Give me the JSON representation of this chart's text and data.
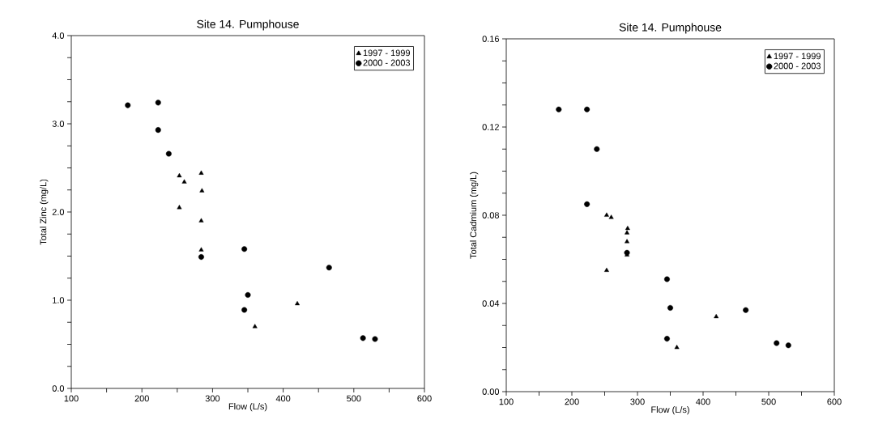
{
  "chart_data": [
    {
      "type": "scatter",
      "title": "Site 14. Pumphouse",
      "xlabel": "Flow (L/s)",
      "ylabel": "Total Zinc (mg/L)",
      "xlim": [
        100,
        600
      ],
      "ylim": [
        0,
        4
      ],
      "xticks": [
        100,
        {
          "value": 150,
          "label": null
        },
        200,
        {
          "value": 250,
          "label": null
        },
        300,
        {
          "value": 350,
          "label": null
        },
        400,
        {
          "value": 450,
          "label": null
        },
        500,
        {
          "value": 550,
          "label": null
        },
        600
      ],
      "yticks": [
        {
          "value": 0,
          "label": "0.0"
        },
        {
          "value": 0.25,
          "label": null
        },
        {
          "value": 0.5,
          "label": null
        },
        {
          "value": 0.75,
          "label": null
        },
        {
          "value": 1,
          "label": "1.0"
        },
        {
          "value": 1.25,
          "label": null
        },
        {
          "value": 1.5,
          "label": null
        },
        {
          "value": 1.75,
          "label": null
        },
        {
          "value": 2,
          "label": "2.0"
        },
        {
          "value": 2.25,
          "label": null
        },
        {
          "value": 2.5,
          "label": null
        },
        {
          "value": 2.75,
          "label": null
        },
        {
          "value": 3,
          "label": "3.0"
        },
        {
          "value": 3.25,
          "label": null
        },
        {
          "value": 3.5,
          "label": null
        },
        {
          "value": 3.75,
          "label": null
        },
        {
          "value": 4,
          "label": "4.0"
        }
      ],
      "legend": "top right",
      "series": [
        {
          "name": "1997 - 1999",
          "color": "#000000",
          "marker": "triangle",
          "x": [
            253,
            260,
            284,
            285,
            253,
            284,
            284,
            420,
            360
          ],
          "values": [
            2.41,
            2.34,
            2.44,
            2.24,
            2.05,
            1.9,
            1.57,
            0.96,
            0.7
          ]
        },
        {
          "name": "2000 - 2003",
          "color": "#000000",
          "marker": "circle",
          "x": [
            180,
            223,
            223,
            238,
            284,
            345,
            350,
            345,
            465,
            513,
            530
          ],
          "values": [
            3.21,
            3.24,
            2.93,
            2.66,
            1.49,
            1.58,
            1.06,
            0.89,
            1.37,
            0.57,
            0.56
          ]
        }
      ]
    },
    {
      "type": "scatter",
      "title": "Site 14. Pumphouse",
      "xlabel": "Flow (L/s)",
      "ylabel": "Total Cadmium (mg/L)",
      "xlim": [
        100,
        600
      ],
      "ylim": [
        0,
        0.16
      ],
      "xticks": [
        100,
        {
          "value": 150,
          "label": null
        },
        200,
        {
          "value": 250,
          "label": null
        },
        300,
        {
          "value": 350,
          "label": null
        },
        400,
        {
          "value": 450,
          "label": null
        },
        500,
        {
          "value": 550,
          "label": null
        },
        600
      ],
      "yticks": [
        {
          "value": 0,
          "label": "0.00"
        },
        {
          "value": 0.01,
          "label": null
        },
        {
          "value": 0.02,
          "label": null
        },
        {
          "value": 0.03,
          "label": null
        },
        {
          "value": 0.04,
          "label": "0.04"
        },
        {
          "value": 0.05,
          "label": null
        },
        {
          "value": 0.06,
          "label": null
        },
        {
          "value": 0.07,
          "label": null
        },
        {
          "value": 0.08,
          "label": "0.08"
        },
        {
          "value": 0.09,
          "label": null
        },
        {
          "value": 0.1,
          "label": null
        },
        {
          "value": 0.11,
          "label": null
        },
        {
          "value": 0.12,
          "label": "0.12"
        },
        {
          "value": 0.13,
          "label": null
        },
        {
          "value": 0.14,
          "label": null
        },
        {
          "value": 0.15,
          "label": null
        },
        {
          "value": 0.16,
          "label": "0.16"
        }
      ],
      "legend": "top right",
      "series": [
        {
          "name": "1997 - 1999",
          "color": "#000000",
          "marker": "triangle",
          "x": [
            253,
            260,
            285,
            284,
            284,
            284,
            253,
            420,
            360
          ],
          "values": [
            0.08,
            0.079,
            0.074,
            0.072,
            0.068,
            0.062,
            0.055,
            0.034,
            0.02
          ]
        },
        {
          "name": "2000 - 2003",
          "color": "#000000",
          "marker": "circle",
          "x": [
            180,
            223,
            238,
            223,
            284,
            345,
            350,
            345,
            465,
            512,
            530
          ],
          "values": [
            0.128,
            0.128,
            0.11,
            0.085,
            0.063,
            0.051,
            0.038,
            0.024,
            0.037,
            0.022,
            0.021
          ]
        }
      ]
    }
  ]
}
